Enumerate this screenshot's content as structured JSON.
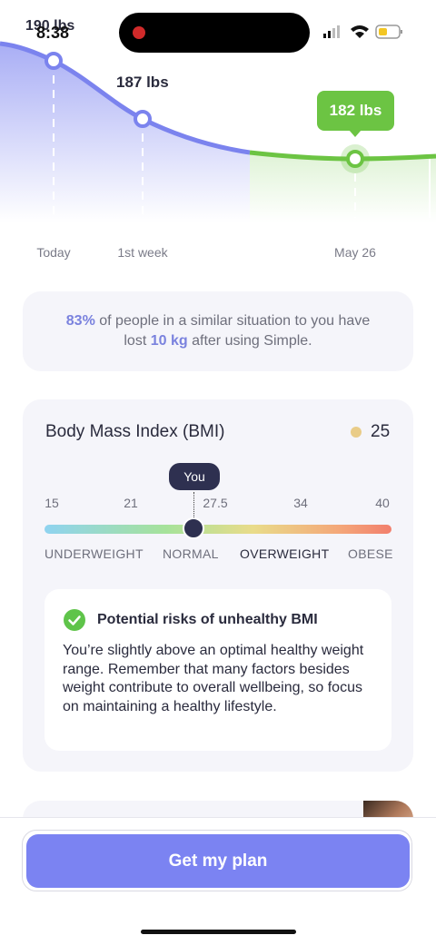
{
  "status_bar": {
    "time": "8:38"
  },
  "progress_chart": {
    "point_labels": [
      "190 lbs",
      "187 lbs",
      "182 lbs"
    ],
    "x_labels": [
      "Today",
      "1st week",
      "May 26"
    ]
  },
  "stat_card": {
    "highlight_1": "83%",
    "text_1": "of people in a similar situation to you have lost",
    "highlight_2": "10 kg",
    "text_2": "after using Simple."
  },
  "bmi_card": {
    "title": "Body Mass Index (BMI)",
    "value": "25",
    "marker_label": "You",
    "scale_labels": [
      "15",
      "21",
      "27.5",
      "34",
      "40"
    ],
    "categories": [
      "UNDERWEIGHT",
      "NORMAL",
      "OVERWEIGHT",
      "OBESE"
    ],
    "risk_title": "Potential risks of unhealthy BMI",
    "risk_text": "You’re slightly above an optimal healthy weight range. Remember that many factors besides weight contribute to overall wellbeing, so focus on maintaining a healthy lifestyle."
  },
  "cta_button": {
    "label": "Get my plan"
  }
}
